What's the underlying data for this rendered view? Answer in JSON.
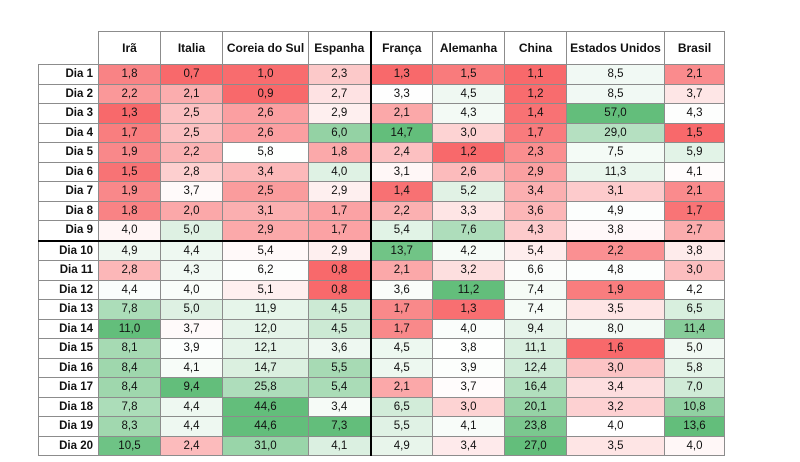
{
  "chart_data": {
    "type": "table",
    "columns": [
      "Irã",
      "Italia",
      "Coreia do Sul",
      "Espanha",
      "França",
      "Alemanha",
      "China",
      "Estados Unidos",
      "Brasil"
    ],
    "rows": [
      {
        "label": "Dia 1",
        "values": [
          "1,8",
          "0,7",
          "1,0",
          "2,3",
          "1,3",
          "1,5",
          "1,1",
          "8,5",
          "2,1"
        ]
      },
      {
        "label": "Dia 2",
        "values": [
          "2,2",
          "2,1",
          "0,9",
          "2,7",
          "3,3",
          "4,5",
          "1,2",
          "8,5",
          "3,7"
        ]
      },
      {
        "label": "Dia 3",
        "values": [
          "1,3",
          "2,5",
          "2,6",
          "2,9",
          "2,1",
          "4,3",
          "1,4",
          "57,0",
          "4,3"
        ]
      },
      {
        "label": "Dia 4",
        "values": [
          "1,7",
          "2,5",
          "2,6",
          "6,0",
          "14,7",
          "3,0",
          "1,7",
          "29,0",
          "1,5"
        ]
      },
      {
        "label": "Dia 5",
        "values": [
          "1,9",
          "2,2",
          "5,8",
          "1,8",
          "2,4",
          "1,2",
          "2,3",
          "7,5",
          "5,9"
        ]
      },
      {
        "label": "Dia 6",
        "values": [
          "1,5",
          "2,8",
          "3,4",
          "4,0",
          "3,1",
          "2,6",
          "2,9",
          "11,3",
          "4,1"
        ]
      },
      {
        "label": "Dia 7",
        "values": [
          "1,9",
          "3,7",
          "2,5",
          "2,9",
          "1,4",
          "5,2",
          "3,4",
          "3,1",
          "2,1"
        ]
      },
      {
        "label": "Dia 8",
        "values": [
          "1,8",
          "2,0",
          "3,1",
          "1,7",
          "2,2",
          "3,3",
          "3,6",
          "4,9",
          "1,7"
        ]
      },
      {
        "label": "Dia 9",
        "values": [
          "4,0",
          "5,0",
          "2,9",
          "1,7",
          "5,4",
          "7,6",
          "4,3",
          "3,8",
          "2,7"
        ]
      },
      {
        "label": "Dia 10",
        "values": [
          "4,9",
          "4,4",
          "5,4",
          "2,9",
          "13,7",
          "4,2",
          "5,4",
          "2,2",
          "3,8"
        ]
      },
      {
        "label": "Dia 11",
        "values": [
          "2,8",
          "4,3",
          "6,2",
          "0,8",
          "2,1",
          "3,2",
          "6,6",
          "4,8",
          "3,0"
        ]
      },
      {
        "label": "Dia 12",
        "values": [
          "4,4",
          "4,0",
          "5,1",
          "0,8",
          "3,6",
          "11,2",
          "7,4",
          "1,9",
          "4,2"
        ]
      },
      {
        "label": "Dia 13",
        "values": [
          "7,8",
          "5,0",
          "11,9",
          "4,5",
          "1,7",
          "1,3",
          "7,4",
          "3,5",
          "6,5"
        ]
      },
      {
        "label": "Dia 14",
        "values": [
          "11,0",
          "3,7",
          "12,0",
          "4,5",
          "1,7",
          "4,0",
          "9,4",
          "8,0",
          "11,4"
        ]
      },
      {
        "label": "Dia 15",
        "values": [
          "8,1",
          "3,9",
          "12,1",
          "3,6",
          "4,5",
          "3,8",
          "11,1",
          "1,6",
          "5,0"
        ]
      },
      {
        "label": "Dia 16",
        "values": [
          "8,4",
          "4,1",
          "14,7",
          "5,5",
          "4,5",
          "3,9",
          "12,4",
          "3,0",
          "5,8"
        ]
      },
      {
        "label": "Dia 17",
        "values": [
          "8,4",
          "9,4",
          "25,8",
          "5,4",
          "2,1",
          "3,7",
          "16,4",
          "3,4",
          "7,0"
        ]
      },
      {
        "label": "Dia 18",
        "values": [
          "7,8",
          "4,4",
          "44,6",
          "3,4",
          "6,5",
          "3,0",
          "20,1",
          "3,2",
          "10,8"
        ]
      },
      {
        "label": "Dia 19",
        "values": [
          "8,3",
          "4,4",
          "44,6",
          "7,3",
          "5,5",
          "4,1",
          "23,8",
          "4,0",
          "13,6"
        ]
      },
      {
        "label": "Dia 20",
        "values": [
          "10,5",
          "2,4",
          "31,0",
          "4,1",
          "4,9",
          "3,4",
          "27,0",
          "3,5",
          "4,0"
        ]
      }
    ],
    "color_scale": {
      "low": "#f8696b",
      "mid": "#ffffff",
      "high": "#63be7b"
    }
  }
}
